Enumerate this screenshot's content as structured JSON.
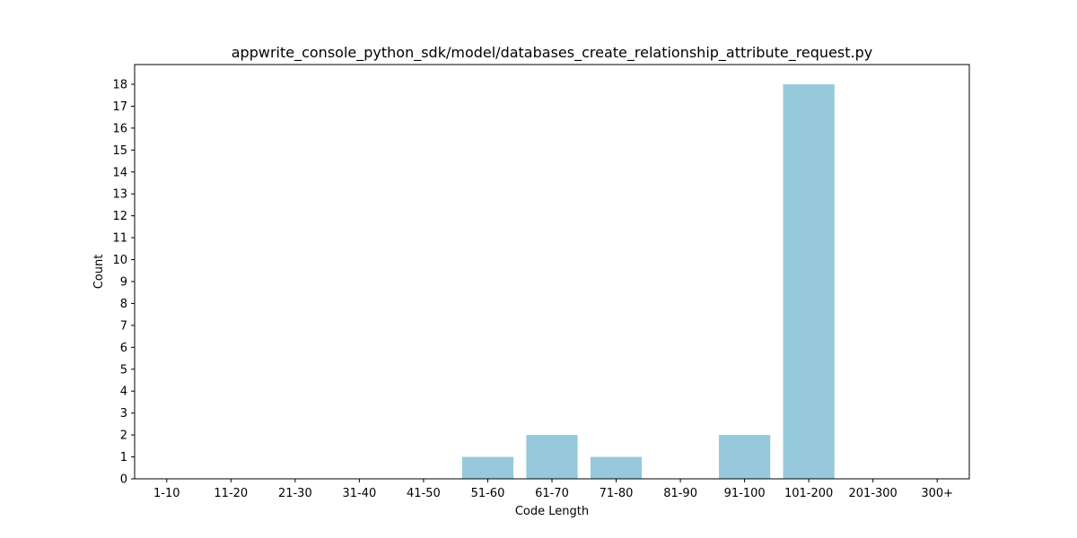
{
  "chart_data": {
    "type": "bar",
    "title": "appwrite_console_python_sdk/model/databases_create_relationship_attribute_request.py",
    "xlabel": "Code Length",
    "ylabel": "Count",
    "categories": [
      "1-10",
      "11-20",
      "21-30",
      "31-40",
      "41-50",
      "51-60",
      "61-70",
      "71-80",
      "81-90",
      "91-100",
      "101-200",
      "201-300",
      "300+"
    ],
    "values": [
      0,
      0,
      0,
      0,
      0,
      1,
      2,
      1,
      0,
      2,
      18,
      0,
      0
    ],
    "ylim": [
      0,
      18.9
    ],
    "yticks": [
      0,
      1,
      2,
      3,
      4,
      5,
      6,
      7,
      8,
      9,
      10,
      11,
      12,
      13,
      14,
      15,
      16,
      17,
      18
    ],
    "grid": false,
    "colors": {
      "bar": "#96c9dc",
      "axis": "#000000"
    }
  }
}
